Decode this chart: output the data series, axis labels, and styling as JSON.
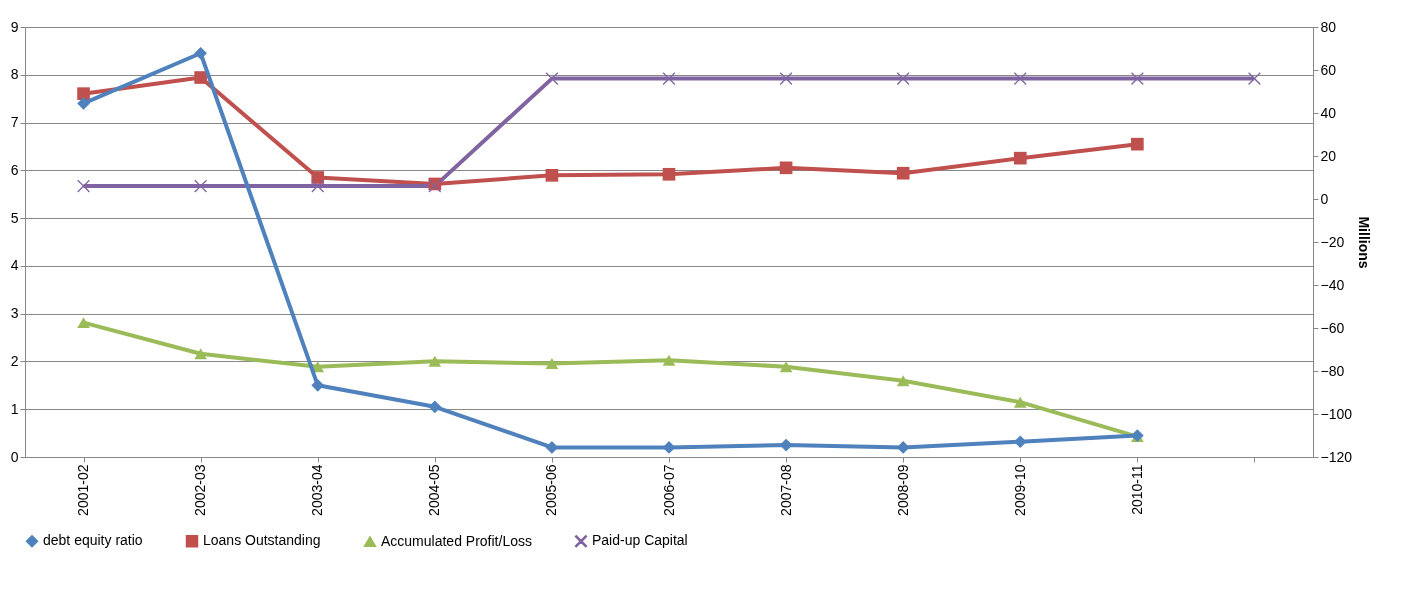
{
  "chart_data": {
    "type": "line",
    "categories": [
      "2001-02",
      "2002-03",
      "2003-04",
      "2004-05",
      "2005-06",
      "2006-07",
      "2007-08",
      "2008-09",
      "2009-10",
      "2010-11",
      null
    ],
    "y2label": "Millions",
    "ylim": [
      0,
      9
    ],
    "yticks": [
      0,
      1,
      2,
      3,
      4,
      5,
      6,
      7,
      8,
      9
    ],
    "y2lim": [
      -120,
      80
    ],
    "y2ticks": [
      -120,
      -100,
      -80,
      -60,
      -40,
      -20,
      0,
      20,
      40,
      60,
      80
    ],
    "grid": "y",
    "legend": "bottom",
    "series": [
      {
        "name": "debt equity ratio",
        "color": "#4f81bd",
        "marker": "diamond",
        "values": [
          7.4,
          8.45,
          1.5,
          1.05,
          0.2,
          0.2,
          0.25,
          0.2,
          0.32,
          0.45,
          null
        ]
      },
      {
        "name": "Loans Outstanding",
        "color": "#c0504d",
        "marker": "square",
        "axis": "y2",
        "values": [
          49,
          56.5,
          10,
          7,
          11,
          11.5,
          14.5,
          12,
          19,
          25.5,
          null
        ]
      },
      {
        "name": "Accumulated Profit/Loss",
        "color": "#9bbb59",
        "marker": "triangle",
        "axis": "y2",
        "values": [
          -57.5,
          -72,
          -78,
          -75.5,
          -76.5,
          -75,
          -78,
          -84.5,
          -94.5,
          -110.5,
          null
        ]
      },
      {
        "name": "Paid-up Capital",
        "color": "#8064a2",
        "marker": "cross",
        "axis": "y2",
        "values": [
          6,
          6,
          6,
          6,
          56,
          56,
          56,
          56,
          56,
          56,
          56
        ]
      }
    ]
  }
}
